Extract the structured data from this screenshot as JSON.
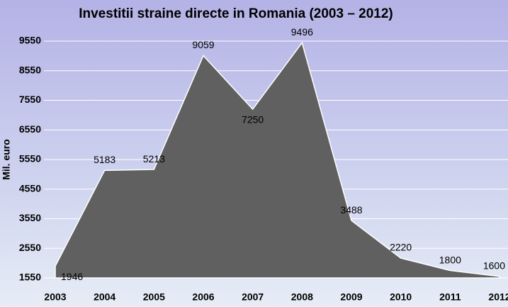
{
  "chart_data": {
    "type": "area",
    "title": "Investitii straine directe in Romania (2003 – 2012)",
    "y_label": "Mil. euro",
    "categories": [
      "2003",
      "2004",
      "2005",
      "2006",
      "2007",
      "2008",
      "2009",
      "2010",
      "2011",
      "2012"
    ],
    "values": [
      1946,
      5183,
      5213,
      9059,
      7250,
      9496,
      3488,
      2220,
      1800,
      1600
    ],
    "color": "#606060",
    "ylim": [
      1550,
      9550
    ],
    "yticks": [
      1550,
      2550,
      3550,
      4550,
      5550,
      6550,
      7550,
      8550,
      9550
    ],
    "grid": true
  }
}
